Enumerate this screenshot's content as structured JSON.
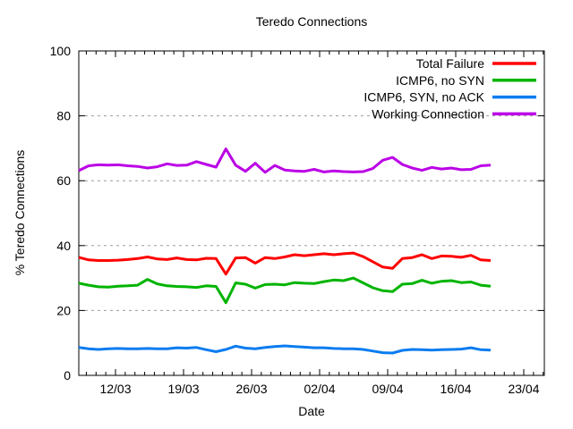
{
  "plot": {
    "background": "#ffffff",
    "border_color": "#000000",
    "grid_color": "#9c9c9c",
    "grid_style": "dashed horizontal"
  },
  "chart_data": {
    "type": "line",
    "title": "Teredo Connections",
    "xlabel": "Date",
    "ylabel": "% Teredo Connections",
    "ylim": [
      0,
      100
    ],
    "y_ticks": [
      0,
      20,
      40,
      60,
      80,
      100
    ],
    "x_tick_labels": [
      "12/03",
      "19/03",
      "26/03",
      "02/04",
      "09/04",
      "16/04",
      "23/04"
    ],
    "legend_position": "top-right-inside",
    "grid": "horizontal dashed gridlines at 20,40,60,80",
    "dates": [
      "08/03",
      "09/03",
      "10/03",
      "11/03",
      "12/03",
      "13/03",
      "14/03",
      "15/03",
      "16/03",
      "17/03",
      "18/03",
      "19/03",
      "20/03",
      "21/03",
      "22/03",
      "23/03",
      "24/03",
      "25/03",
      "26/03",
      "27/03",
      "28/03",
      "29/03",
      "30/03",
      "31/03",
      "01/04",
      "02/04",
      "03/04",
      "04/04",
      "05/04",
      "06/04",
      "07/04",
      "08/04",
      "09/04",
      "10/04",
      "11/04",
      "12/04",
      "13/04",
      "14/04",
      "15/04",
      "16/04",
      "17/04",
      "18/04",
      "19/04"
    ],
    "series": [
      {
        "name": "Total Failure",
        "color": "#ff0000",
        "values": [
          36.4,
          35.6,
          35.4,
          35.4,
          35.5,
          35.7,
          36.0,
          36.5,
          35.9,
          35.7,
          36.2,
          35.7,
          35.6,
          36.1,
          36.0,
          31.2,
          36.2,
          36.3,
          34.6,
          36.3,
          36.0,
          36.5,
          37.2,
          36.9,
          37.2,
          37.5,
          37.2,
          37.5,
          37.7,
          36.6,
          35.0,
          33.4,
          33.0,
          36.0,
          36.3,
          37.2,
          36.0,
          36.8,
          36.7,
          36.4,
          37.0,
          35.6,
          35.4
        ]
      },
      {
        "name": "ICMP6, no SYN",
        "color": "#00b400",
        "values": [
          28.4,
          27.8,
          27.3,
          27.2,
          27.5,
          27.6,
          27.8,
          29.6,
          28.2,
          27.6,
          27.4,
          27.3,
          27.1,
          27.6,
          27.4,
          22.4,
          28.5,
          28.1,
          26.9,
          28.0,
          28.1,
          27.9,
          28.6,
          28.4,
          28.3,
          28.9,
          29.4,
          29.2,
          30.0,
          28.5,
          27.0,
          26.1,
          25.8,
          28.1,
          28.3,
          29.3,
          28.4,
          29.0,
          29.2,
          28.6,
          28.8,
          27.8,
          27.5
        ]
      },
      {
        "name": "ICMP6, SYN, no ACK",
        "color": "#0a7cf0",
        "values": [
          8.6,
          8.2,
          8.0,
          8.2,
          8.3,
          8.2,
          8.2,
          8.3,
          8.2,
          8.2,
          8.5,
          8.4,
          8.6,
          7.9,
          7.3,
          8.0,
          9.0,
          8.4,
          8.2,
          8.6,
          8.9,
          9.1,
          8.9,
          8.7,
          8.5,
          8.5,
          8.3,
          8.2,
          8.2,
          8.0,
          7.5,
          7.0,
          6.9,
          7.7,
          8.0,
          7.9,
          7.8,
          7.9,
          8.0,
          8.1,
          8.5,
          7.9,
          7.8
        ]
      },
      {
        "name": "Working Connection",
        "color": "#bb00e6",
        "values": [
          63.1,
          64.6,
          64.9,
          64.8,
          64.9,
          64.6,
          64.4,
          63.9,
          64.3,
          65.2,
          64.7,
          64.8,
          65.9,
          65.0,
          64.2,
          69.8,
          64.8,
          62.9,
          65.4,
          62.6,
          64.7,
          63.3,
          63.0,
          62.9,
          63.5,
          62.7,
          63.0,
          62.8,
          62.7,
          62.8,
          63.8,
          66.3,
          67.2,
          65.0,
          63.9,
          63.2,
          64.1,
          63.6,
          63.9,
          63.4,
          63.5,
          64.6,
          64.8
        ]
      }
    ]
  }
}
